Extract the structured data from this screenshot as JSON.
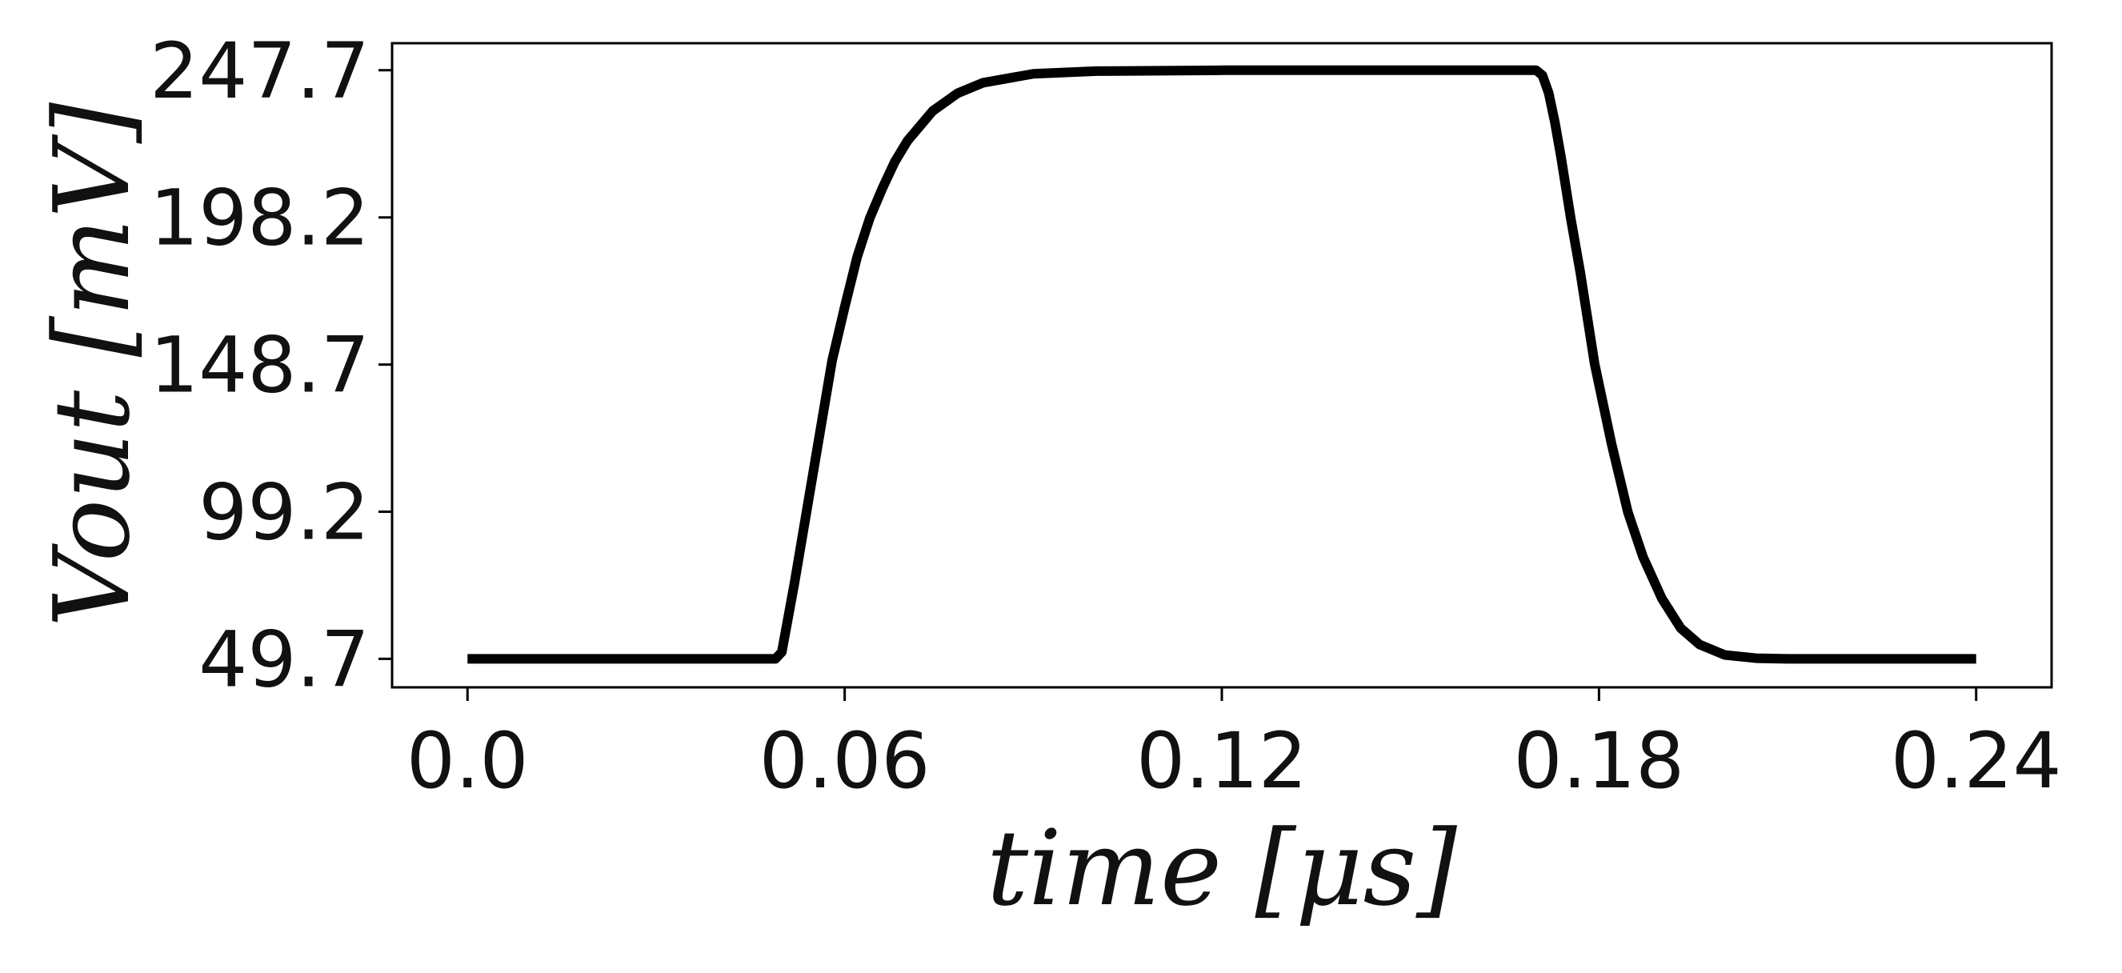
{
  "chart_data": {
    "type": "line",
    "xlabel": "time [μs]",
    "ylabel": "Vout [mV]",
    "series": [
      {
        "name": "Vout",
        "color": "#000000",
        "x": [
          0,
          0.049,
          0.05,
          0.052,
          0.054,
          0.056,
          0.058,
          0.06,
          0.062,
          0.064,
          0.066,
          0.068,
          0.07,
          0.074,
          0.078,
          0.082,
          0.09,
          0.1,
          0.12,
          0.17,
          0.171,
          0.172,
          0.173,
          0.174,
          0.1755,
          0.177,
          0.1793,
          0.182,
          0.1846,
          0.187,
          0.19,
          0.193,
          0.196,
          0.2,
          0.205,
          0.21,
          0.24
        ],
        "values": [
          49.7,
          49.7,
          52,
          75,
          100,
          125,
          150,
          168,
          185,
          198,
          208,
          217,
          224,
          234,
          240,
          243.5,
          246.5,
          247.4,
          247.7,
          247.7,
          246,
          240,
          230,
          218,
          198,
          180,
          149,
          122,
          99,
          84,
          70,
          60,
          54.5,
          51,
          49.9,
          49.7,
          49.7
        ]
      }
    ],
    "xlim": [
      -0.012,
      0.252
    ],
    "ylim": [
      40.1,
      256.8
    ],
    "xticks": [
      {
        "value": 0,
        "label": "0.0"
      },
      0.06,
      0.12,
      0.18,
      0.24
    ],
    "yticks": [
      49.7,
      99.2,
      148.7,
      198.2,
      247.7
    ]
  }
}
